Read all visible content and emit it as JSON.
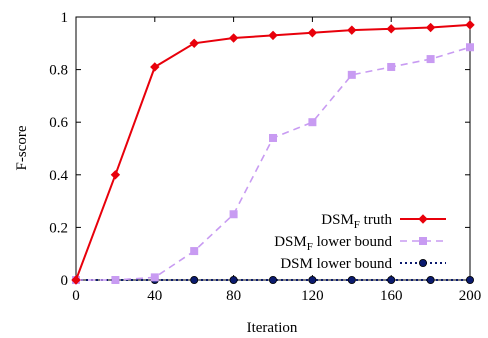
{
  "chart_data": {
    "type": "line",
    "xlabel": "Iteration",
    "ylabel": "F-score",
    "xlim": [
      0,
      200
    ],
    "ylim": [
      0,
      1
    ],
    "x_ticks": [
      "0",
      "40",
      "80",
      "120",
      "160",
      "200"
    ],
    "y_ticks": [
      "0",
      "0.2",
      "0.4",
      "0.6",
      "0.8",
      "1"
    ],
    "grid": false,
    "legend_position": "bottom-right",
    "series": [
      {
        "name": "DSM_F truth",
        "label_main": "DSM",
        "label_sub": "F",
        "label_rest": " truth",
        "color": "#e8000b",
        "line_style": "solid",
        "marker": "diamond",
        "x": [
          0,
          20,
          40,
          60,
          80,
          100,
          120,
          140,
          160,
          180,
          200
        ],
        "y": [
          0,
          0.4,
          0.81,
          0.9,
          0.92,
          0.93,
          0.94,
          0.95,
          0.955,
          0.96,
          0.97
        ]
      },
      {
        "name": "DSM_F lower bound",
        "label_main": "DSM",
        "label_sub": "F",
        "label_rest": " lower bound",
        "color": "#c89bf2",
        "line_style": "dashed",
        "marker": "square",
        "x": [
          0,
          20,
          40,
          60,
          80,
          100,
          120,
          140,
          160,
          180,
          200
        ],
        "y": [
          0,
          0,
          0.01,
          0.11,
          0.25,
          0.54,
          0.6,
          0.78,
          0.81,
          0.84,
          0.885
        ]
      },
      {
        "name": "DSM lower bound",
        "label_main": "DSM lower bound",
        "label_sub": "",
        "label_rest": "",
        "color": "#0a1a6e",
        "line_style": "dotted",
        "marker": "circle",
        "x": [
          0,
          20,
          40,
          60,
          80,
          100,
          120,
          140,
          160,
          180,
          200
        ],
        "y": [
          0,
          0,
          0,
          0,
          0,
          0,
          0,
          0,
          0,
          0,
          0
        ]
      }
    ]
  }
}
